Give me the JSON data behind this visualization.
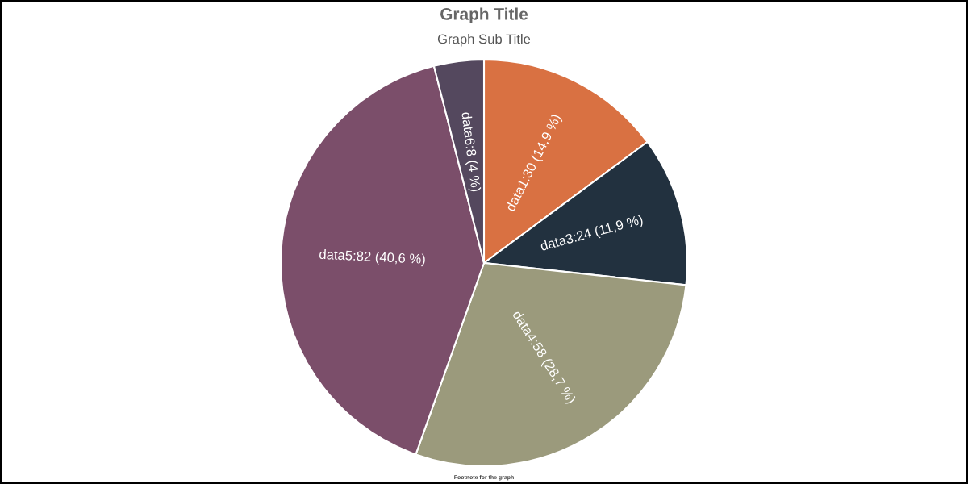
{
  "chart_data": {
    "type": "pie",
    "title": "Graph Title",
    "subtitle": "Graph Sub Title",
    "categories": [
      "data1",
      "data3",
      "data4",
      "data5",
      "data6"
    ],
    "values": [
      30,
      24,
      58,
      82,
      8
    ],
    "colors": [
      "#d97142",
      "#22313f",
      "#9b9a7c",
      "#7b4e6a",
      "#54485e"
    ],
    "value_labels": [
      "30 (14,9 %)",
      "24 (11,9 %)",
      "58 (28,7 %)",
      "82 (40,6 %)",
      "8 (4 %)"
    ],
    "annotations": [
      "Footnote for the graph"
    ],
    "legend": false
  }
}
